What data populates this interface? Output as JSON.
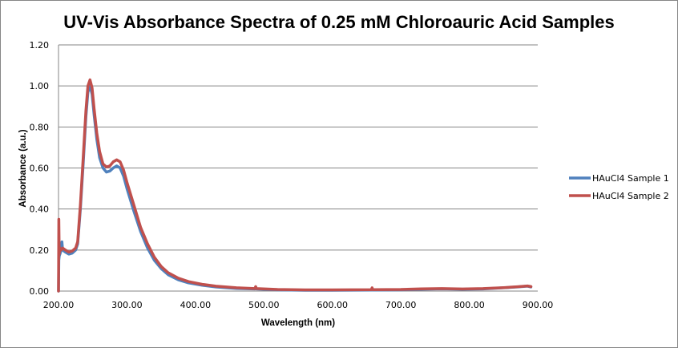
{
  "chart_data": {
    "type": "line",
    "title": "UV-Vis Absorbance Spectra of 0.25 mM Chloroauric Acid Samples",
    "xlabel": "Wavelength (nm)",
    "ylabel": "Absorbance (a.u.)",
    "xlim": [
      200,
      900
    ],
    "ylim": [
      0,
      1.2
    ],
    "x_ticks": [
      "200.00",
      "300.00",
      "400.00",
      "500.00",
      "600.00",
      "700.00",
      "800.00",
      "900.00"
    ],
    "y_ticks": [
      "0.00",
      "0.20",
      "0.40",
      "0.60",
      "0.80",
      "1.00",
      "1.20"
    ],
    "x_tick_values": [
      200,
      300,
      400,
      500,
      600,
      700,
      800,
      900
    ],
    "y_tick_values": [
      0,
      0.2,
      0.4,
      0.6,
      0.8,
      1.0,
      1.2
    ],
    "grid": "horizontal",
    "legend": "right",
    "series": [
      {
        "name": "HAuCl4 Sample 1",
        "color": "#4F81BD",
        "points": [
          [
            200,
            0.0
          ],
          [
            200.5,
            0.15
          ],
          [
            201,
            0.17
          ],
          [
            203,
            0.19
          ],
          [
            205,
            0.24
          ],
          [
            206,
            0.2
          ],
          [
            210,
            0.19
          ],
          [
            215,
            0.18
          ],
          [
            220,
            0.185
          ],
          [
            225,
            0.2
          ],
          [
            228,
            0.23
          ],
          [
            232,
            0.4
          ],
          [
            236,
            0.62
          ],
          [
            240,
            0.85
          ],
          [
            243,
            0.97
          ],
          [
            246,
            1.0
          ],
          [
            249,
            0.96
          ],
          [
            252,
            0.86
          ],
          [
            256,
            0.74
          ],
          [
            260,
            0.65
          ],
          [
            265,
            0.6
          ],
          [
            270,
            0.58
          ],
          [
            275,
            0.585
          ],
          [
            280,
            0.6
          ],
          [
            285,
            0.61
          ],
          [
            290,
            0.6
          ],
          [
            295,
            0.56
          ],
          [
            300,
            0.5
          ],
          [
            310,
            0.39
          ],
          [
            320,
            0.29
          ],
          [
            330,
            0.21
          ],
          [
            340,
            0.15
          ],
          [
            350,
            0.11
          ],
          [
            360,
            0.08
          ],
          [
            375,
            0.055
          ],
          [
            390,
            0.04
          ],
          [
            410,
            0.028
          ],
          [
            430,
            0.02
          ],
          [
            460,
            0.013
          ],
          [
            487,
            0.01
          ],
          [
            488,
            0.02
          ],
          [
            489,
            0.01
          ],
          [
            520,
            0.006
          ],
          [
            560,
            0.004
          ],
          [
            600,
            0.004
          ],
          [
            657,
            0.005
          ],
          [
            658,
            0.014
          ],
          [
            659,
            0.005
          ],
          [
            700,
            0.006
          ],
          [
            730,
            0.009
          ],
          [
            760,
            0.011
          ],
          [
            790,
            0.009
          ],
          [
            820,
            0.01
          ],
          [
            850,
            0.016
          ],
          [
            870,
            0.02
          ],
          [
            885,
            0.024
          ],
          [
            890,
            0.02
          ]
        ]
      },
      {
        "name": "HAuCl4 Sample 2",
        "color": "#C0504D",
        "points": [
          [
            200,
            0.0
          ],
          [
            200.5,
            0.35
          ],
          [
            201,
            0.18
          ],
          [
            202,
            0.21
          ],
          [
            204,
            0.2
          ],
          [
            206,
            0.21
          ],
          [
            210,
            0.2
          ],
          [
            215,
            0.19
          ],
          [
            220,
            0.195
          ],
          [
            225,
            0.21
          ],
          [
            228,
            0.24
          ],
          [
            232,
            0.42
          ],
          [
            236,
            0.65
          ],
          [
            240,
            0.88
          ],
          [
            243,
            1.0
          ],
          [
            246,
            1.03
          ],
          [
            249,
            0.99
          ],
          [
            252,
            0.89
          ],
          [
            256,
            0.77
          ],
          [
            260,
            0.68
          ],
          [
            265,
            0.62
          ],
          [
            270,
            0.605
          ],
          [
            275,
            0.61
          ],
          [
            280,
            0.63
          ],
          [
            285,
            0.64
          ],
          [
            290,
            0.63
          ],
          [
            295,
            0.59
          ],
          [
            300,
            0.53
          ],
          [
            310,
            0.42
          ],
          [
            320,
            0.31
          ],
          [
            330,
            0.23
          ],
          [
            340,
            0.165
          ],
          [
            350,
            0.12
          ],
          [
            360,
            0.09
          ],
          [
            375,
            0.063
          ],
          [
            390,
            0.046
          ],
          [
            410,
            0.033
          ],
          [
            430,
            0.024
          ],
          [
            460,
            0.016
          ],
          [
            487,
            0.012
          ],
          [
            488,
            0.022
          ],
          [
            489,
            0.012
          ],
          [
            520,
            0.008
          ],
          [
            560,
            0.006
          ],
          [
            600,
            0.006
          ],
          [
            657,
            0.007
          ],
          [
            658,
            0.016
          ],
          [
            659,
            0.007
          ],
          [
            700,
            0.008
          ],
          [
            730,
            0.011
          ],
          [
            760,
            0.012
          ],
          [
            790,
            0.01
          ],
          [
            820,
            0.012
          ],
          [
            850,
            0.017
          ],
          [
            870,
            0.021
          ],
          [
            885,
            0.025
          ],
          [
            890,
            0.022
          ]
        ]
      }
    ]
  }
}
